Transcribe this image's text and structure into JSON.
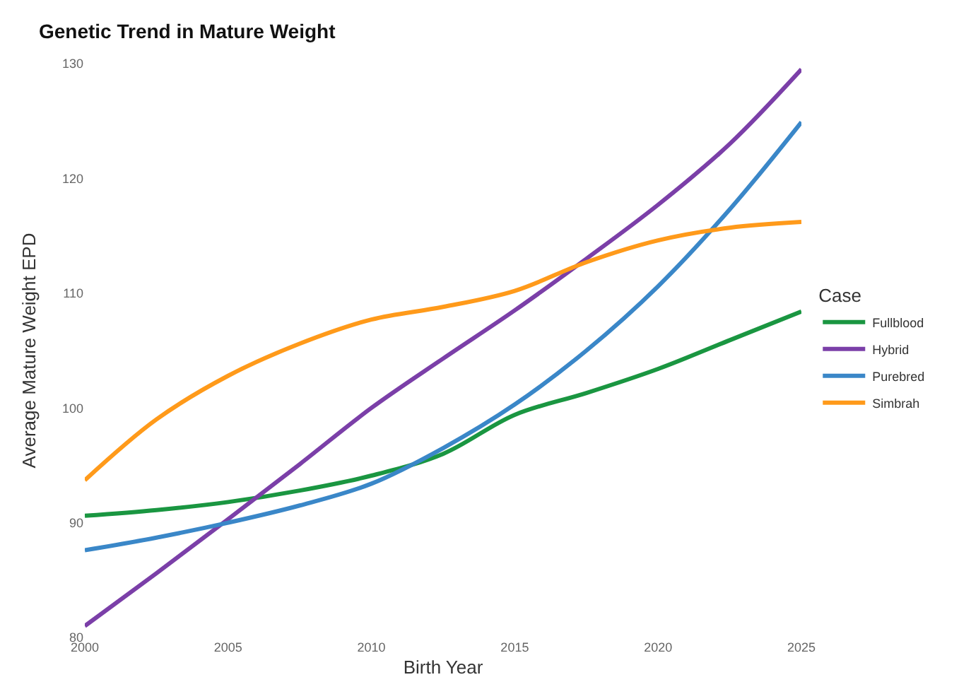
{
  "chart_data": {
    "type": "line",
    "title": "Genetic Trend in Mature Weight",
    "xlabel": "Birth Year",
    "ylabel": "Average Mature Weight EPD",
    "legend_title": "Case",
    "x": [
      2000,
      2002.5,
      2005,
      2007.5,
      2010,
      2012.5,
      2015,
      2017.5,
      2020,
      2022.5,
      2025
    ],
    "series": [
      {
        "name": "Fullblood",
        "color": "#1a9641",
        "values": [
          90.6,
          91.1,
          91.8,
          92.8,
          94.1,
          96,
          99.4,
          101.3,
          103.4,
          105.9,
          108.4
        ]
      },
      {
        "name": "Hybrid",
        "color": "#7b3fa8",
        "values": [
          81,
          85.6,
          90.3,
          95.1,
          100,
          104.3,
          108.5,
          113,
          117.7,
          123,
          129.5
        ]
      },
      {
        "name": "Purebred",
        "color": "#3a87c8",
        "values": [
          87.6,
          88.7,
          90,
          91.5,
          93.4,
          96.5,
          100.3,
          105,
          110.6,
          117.3,
          124.9
        ]
      },
      {
        "name": "Simbrah",
        "color": "#ff9a1a",
        "values": [
          93.7,
          99,
          102.8,
          105.6,
          107.7,
          108.8,
          110.2,
          112.7,
          114.6,
          115.7,
          116.2
        ]
      }
    ],
    "xlim": [
      2000,
      2025
    ],
    "ylim": [
      80,
      130
    ],
    "xticks": [
      2000,
      2005,
      2010,
      2015,
      2020,
      2025
    ],
    "yticks": [
      80,
      90,
      100,
      110,
      120,
      130
    ],
    "grid": false,
    "legend": "right",
    "line_style": "solid",
    "marker": "none"
  }
}
